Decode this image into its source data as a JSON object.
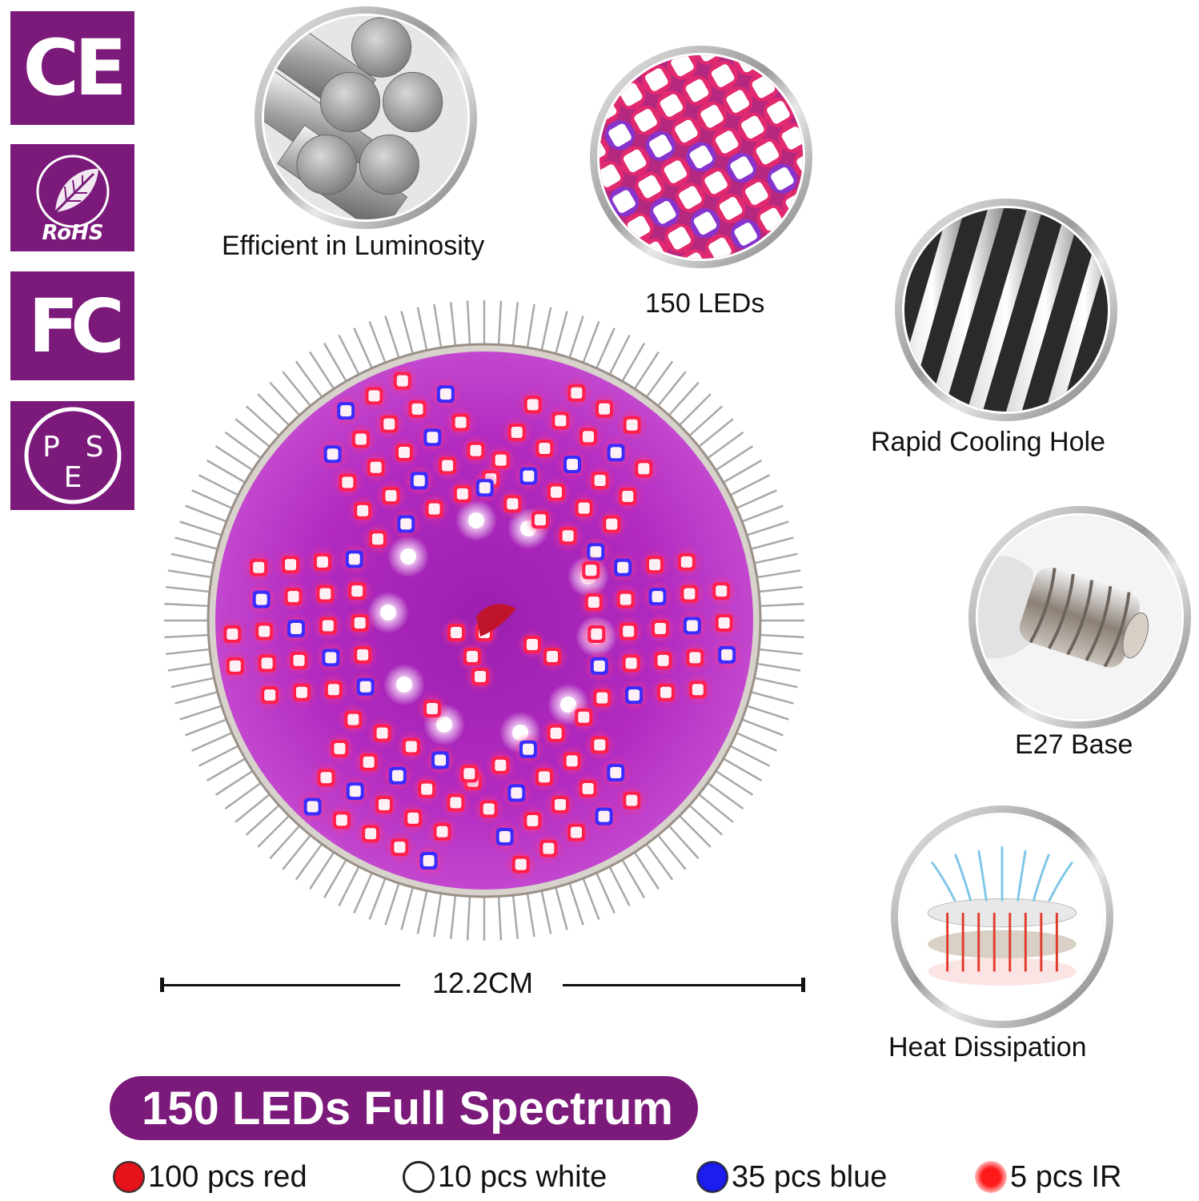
{
  "badges": {
    "ce": "CE",
    "rohs": "RoHS",
    "fc": "FC",
    "pse": [
      "P",
      "S",
      "E"
    ]
  },
  "features": {
    "luminosity": "Efficient in Luminosity",
    "leds": "150 LEDs",
    "cooling": "Rapid Cooling Hole",
    "base": "E27 Base",
    "heat": "Heat Dissipation"
  },
  "dimension": "12.2CM",
  "banner": "150 LEDs Full Spectrum",
  "legend": [
    {
      "label": "100 pcs red",
      "color": "#e8141b"
    },
    {
      "label": "10 pcs white",
      "color": "#ffffff"
    },
    {
      "label": "35 pcs blue",
      "color": "#1d1df0"
    },
    {
      "label": "5 pcs IR",
      "color": "#f40f1f"
    }
  ],
  "colors": {
    "brand_purple": "#7b1a7a",
    "led_red": "#ff1f4d",
    "led_blue": "#3a2cff",
    "board": "#b02ab8"
  }
}
